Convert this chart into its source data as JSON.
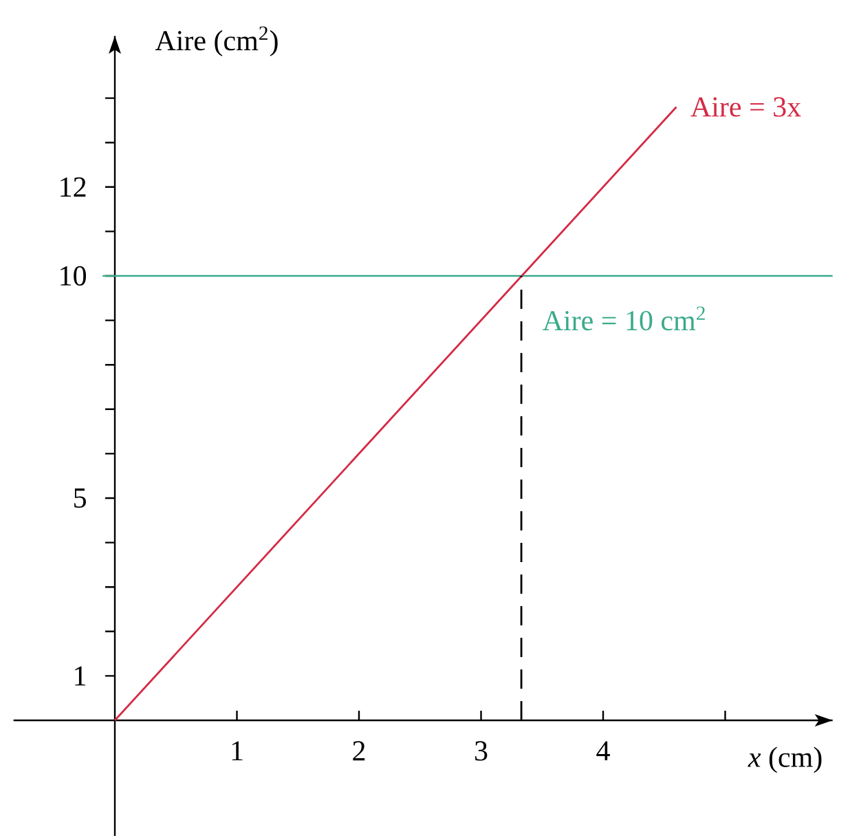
{
  "chart_data": {
    "type": "line",
    "xlabel": "*x* (cm)",
    "ylabel": "Aire (cm$^{2}$)",
    "xlim": [
      -0.83,
      5.88
    ],
    "ylim": [
      -2.6,
      15.4
    ],
    "xticks": [
      1,
      2,
      3,
      4,
      {
        "value": 5,
        "label": null
      }
    ],
    "yticks": [
      1,
      {
        "value": 2,
        "label": null
      },
      {
        "value": 3,
        "label": null
      },
      {
        "value": 4,
        "label": null
      },
      5,
      {
        "value": 6,
        "label": null
      },
      {
        "value": 7,
        "label": null
      },
      {
        "value": 8,
        "label": null
      },
      {
        "value": 9,
        "label": null
      },
      10,
      {
        "value": 11,
        "label": null
      },
      12,
      {
        "value": 13,
        "label": null
      },
      {
        "value": 14,
        "label": null
      }
    ],
    "series": [
      {
        "name": "Aire = 3x",
        "color": "#d42a45",
        "x": [
          0,
          4.6
        ],
        "values": [
          0,
          13.8
        ]
      },
      {
        "color": "#000000",
        "x": [
          3.33,
          3.33
        ],
        "values": [
          0,
          10
        ],
        "line_style": "dashed"
      }
    ],
    "ref_lines": [
      {
        "axis": "y",
        "value": 10,
        "label": "Aire = 10 cm$^{2}$",
        "color": "#3aaa8a"
      }
    ]
  }
}
